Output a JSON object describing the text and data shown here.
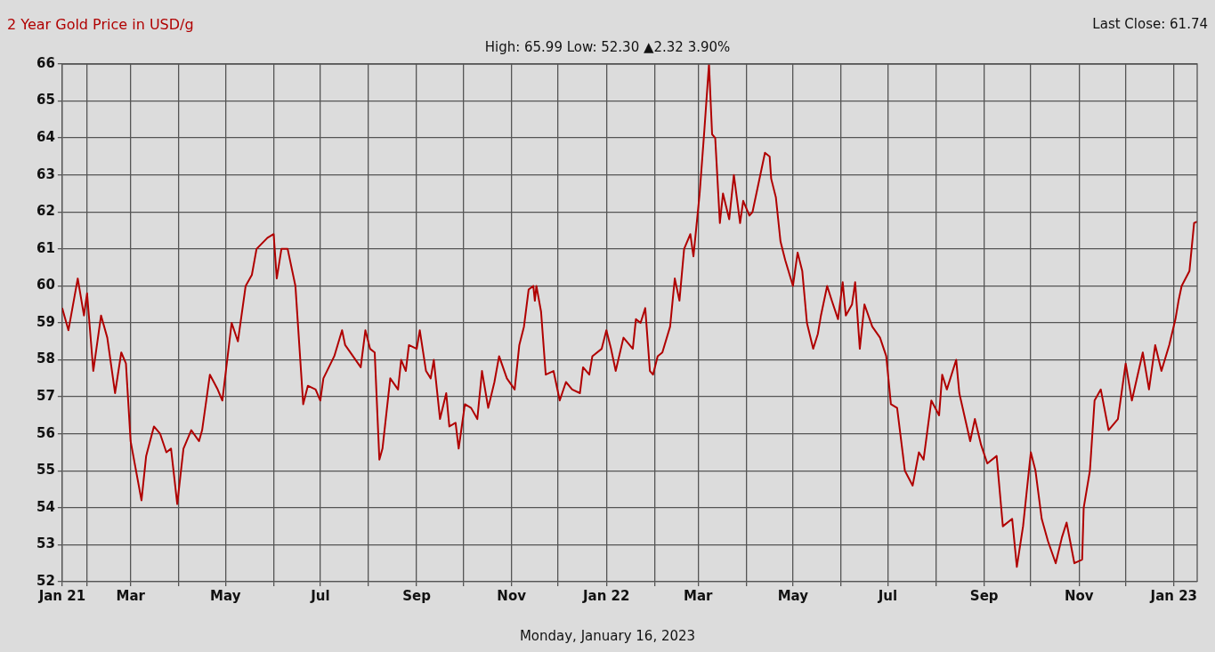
{
  "chart_data": {
    "type": "line",
    "title": "2 Year Gold Price in USD/g",
    "annotations": [
      "High: 65.99 Low: 52.30 ▲2.32 3.90%",
      "Last Close: 61.74",
      "Monday, January 16, 2023"
    ],
    "x": [
      "2021-01-16",
      "2021-01-20",
      "2021-01-26",
      "2021-01-28",
      "2021-01-30",
      "2021-02-01",
      "2021-02-05",
      "2021-02-10",
      "2021-02-14",
      "2021-02-19",
      "2021-02-23",
      "2021-02-26",
      "2021-03-01",
      "2021-03-08",
      "2021-03-11",
      "2021-03-16",
      "2021-03-20",
      "2021-03-24",
      "2021-03-27",
      "2021-03-31",
      "2021-04-04",
      "2021-04-09",
      "2021-04-14",
      "2021-04-16",
      "2021-04-21",
      "2021-04-26",
      "2021-04-29",
      "2021-05-01",
      "2021-05-05",
      "2021-05-09",
      "2021-05-14",
      "2021-05-18",
      "2021-05-21",
      "2021-05-28",
      "2021-06-01",
      "2021-06-03",
      "2021-06-06",
      "2021-06-10",
      "2021-06-15",
      "2021-06-20",
      "2021-06-23",
      "2021-06-28",
      "2021-07-01",
      "2021-07-03",
      "2021-07-10",
      "2021-07-15",
      "2021-07-17",
      "2021-07-27",
      "2021-07-30",
      "2021-08-02",
      "2021-08-05",
      "2021-08-08",
      "2021-08-10",
      "2021-08-15",
      "2021-08-20",
      "2021-08-22",
      "2021-08-25",
      "2021-08-27",
      "2021-09-01",
      "2021-09-03",
      "2021-09-07",
      "2021-09-10",
      "2021-09-12",
      "2021-09-16",
      "2021-09-20",
      "2021-09-22",
      "2021-09-26",
      "2021-09-28",
      "2021-10-02",
      "2021-10-06",
      "2021-10-10",
      "2021-10-13",
      "2021-10-17",
      "2021-10-21",
      "2021-10-24",
      "2021-10-29",
      "2021-11-03",
      "2021-11-06",
      "2021-11-09",
      "2021-11-12",
      "2021-11-15",
      "2021-11-16",
      "2021-11-17",
      "2021-11-20",
      "2021-11-23",
      "2021-11-28",
      "2021-12-02",
      "2021-12-06",
      "2021-12-10",
      "2021-12-15",
      "2021-12-17",
      "2021-12-21",
      "2021-12-23",
      "2021-12-29",
      "2022-01-01",
      "2022-01-04",
      "2022-01-07",
      "2022-01-12",
      "2022-01-18",
      "2022-01-20",
      "2022-01-23",
      "2022-01-26",
      "2022-01-29",
      "2022-01-31",
      "2022-02-03",
      "2022-02-06",
      "2022-02-11",
      "2022-02-14",
      "2022-02-17",
      "2022-02-20",
      "2022-02-24",
      "2022-02-26",
      "2022-03-02",
      "2022-03-05",
      "2022-03-08",
      "2022-03-10",
      "2022-03-12",
      "2022-03-15",
      "2022-03-17",
      "2022-03-21",
      "2022-03-24",
      "2022-03-28",
      "2022-03-30",
      "2022-04-03",
      "2022-04-05",
      "2022-04-09",
      "2022-04-13",
      "2022-04-16",
      "2022-04-17",
      "2022-04-20",
      "2022-04-23",
      "2022-04-26",
      "2022-05-01",
      "2022-05-04",
      "2022-05-07",
      "2022-05-10",
      "2022-05-14",
      "2022-05-17",
      "2022-05-19",
      "2022-05-23",
      "2022-05-26",
      "2022-05-30",
      "2022-06-02",
      "2022-06-04",
      "2022-06-08",
      "2022-06-10",
      "2022-06-13",
      "2022-06-16",
      "2022-06-21",
      "2022-06-26",
      "2022-06-30",
      "2022-07-03",
      "2022-07-07",
      "2022-07-12",
      "2022-07-17",
      "2022-07-21",
      "2022-07-24",
      "2022-07-29",
      "2022-08-03",
      "2022-08-05",
      "2022-08-08",
      "2022-08-14",
      "2022-08-16",
      "2022-08-23",
      "2022-08-26",
      "2022-08-30",
      "2022-09-03",
      "2022-09-09",
      "2022-09-13",
      "2022-09-19",
      "2022-09-22",
      "2022-09-26",
      "2022-10-01",
      "2022-10-04",
      "2022-10-08",
      "2022-10-12",
      "2022-10-17",
      "2022-10-21",
      "2022-10-24",
      "2022-10-29",
      "2022-11-03",
      "2022-11-04",
      "2022-11-08",
      "2022-11-11",
      "2022-11-15",
      "2022-11-20",
      "2022-11-26",
      "2022-12-01",
      "2022-12-05",
      "2022-12-12",
      "2022-12-16",
      "2022-12-20",
      "2022-12-24",
      "2022-12-29",
      "2023-01-02",
      "2023-01-04",
      "2023-01-06",
      "2023-01-11",
      "2023-01-14",
      "2023-01-16"
    ],
    "series": [
      {
        "color": "#b00000",
        "values": [
          59.4,
          58.8,
          60.2,
          59.7,
          59.2,
          59.8,
          57.7,
          59.2,
          58.6,
          57.1,
          58.2,
          57.9,
          55.8,
          54.2,
          55.4,
          56.2,
          56.0,
          55.5,
          55.6,
          54.1,
          55.6,
          56.1,
          55.8,
          56.1,
          57.6,
          57.2,
          56.9,
          57.6,
          59.0,
          58.5,
          60.0,
          60.3,
          61.0,
          61.3,
          61.4,
          60.2,
          61.0,
          61.0,
          60.0,
          56.8,
          57.3,
          57.2,
          56.9,
          57.5,
          58.1,
          58.8,
          58.4,
          57.8,
          58.8,
          58.3,
          58.2,
          55.3,
          55.6,
          57.5,
          57.2,
          58.0,
          57.7,
          58.4,
          58.3,
          58.8,
          57.7,
          57.5,
          58.0,
          56.4,
          57.1,
          56.2,
          56.3,
          55.6,
          56.8,
          56.7,
          56.4,
          57.7,
          56.7,
          57.4,
          58.1,
          57.5,
          57.2,
          58.4,
          58.9,
          59.9,
          60.0,
          59.6,
          60.0,
          59.3,
          57.6,
          57.7,
          56.9,
          57.4,
          57.2,
          57.1,
          57.8,
          57.6,
          58.1,
          58.3,
          58.8,
          58.3,
          57.7,
          58.6,
          58.3,
          59.1,
          59.0,
          59.4,
          57.7,
          57.6,
          58.1,
          58.2,
          58.9,
          60.2,
          59.6,
          61.0,
          61.4,
          60.8,
          62.5,
          64.2,
          66.0,
          64.1,
          64.0,
          61.7,
          62.5,
          61.8,
          63.0,
          61.7,
          62.3,
          61.9,
          62.0,
          62.8,
          63.6,
          63.5,
          62.9,
          62.4,
          61.2,
          60.7,
          60.0,
          60.9,
          60.4,
          59.0,
          58.3,
          58.7,
          59.2,
          60.0,
          59.6,
          59.1,
          60.1,
          59.2,
          59.5,
          60.1,
          58.3,
          59.5,
          58.9,
          58.6,
          58.1,
          56.8,
          56.7,
          55.0,
          54.6,
          55.5,
          55.3,
          56.9,
          56.5,
          57.6,
          57.2,
          58.0,
          57.1,
          55.8,
          56.4,
          55.7,
          55.2,
          55.4,
          53.5,
          53.7,
          52.4,
          53.5,
          55.5,
          55.0,
          53.7,
          53.1,
          52.5,
          53.2,
          53.6,
          52.5,
          52.6,
          54.0,
          55.0,
          56.9,
          57.2,
          56.1,
          56.4,
          57.9,
          56.9,
          58.2,
          57.2,
          58.4,
          57.7,
          58.4,
          59.1,
          59.6,
          60.0,
          60.4,
          61.7,
          61.74
        ]
      }
    ],
    "xlim": [
      "2021-01-16",
      "2023-01-16"
    ],
    "xticks": [
      {
        "value": "2021-01-16",
        "label": "Jan 21"
      },
      {
        "value": "2021-02-01",
        "label": null
      },
      {
        "value": "2021-03-01",
        "label": "Mar"
      },
      {
        "value": "2021-04-01",
        "label": null
      },
      {
        "value": "2021-05-01",
        "label": "May"
      },
      {
        "value": "2021-06-01",
        "label": null
      },
      {
        "value": "2021-07-01",
        "label": "Jul"
      },
      {
        "value": "2021-08-01",
        "label": null
      },
      {
        "value": "2021-09-01",
        "label": "Sep"
      },
      {
        "value": "2021-10-01",
        "label": null
      },
      {
        "value": "2021-11-01",
        "label": "Nov"
      },
      {
        "value": "2021-12-01",
        "label": null
      },
      {
        "value": "2022-01-01",
        "label": "Jan 22"
      },
      {
        "value": "2022-02-01",
        "label": null
      },
      {
        "value": "2022-03-01",
        "label": "Mar"
      },
      {
        "value": "2022-04-01",
        "label": null
      },
      {
        "value": "2022-05-01",
        "label": "May"
      },
      {
        "value": "2022-06-01",
        "label": null
      },
      {
        "value": "2022-07-01",
        "label": "Jul"
      },
      {
        "value": "2022-08-01",
        "label": null
      },
      {
        "value": "2022-09-01",
        "label": "Sep"
      },
      {
        "value": "2022-10-01",
        "label": null
      },
      {
        "value": "2022-11-01",
        "label": "Nov"
      },
      {
        "value": "2022-12-01",
        "label": null
      },
      {
        "value": "2023-01-01",
        "label": "Jan 23"
      }
    ],
    "ylim": [
      52,
      66
    ],
    "yticks": [
      52,
      53,
      54,
      55,
      56,
      57,
      58,
      59,
      60,
      61,
      62,
      63,
      64,
      65,
      66
    ],
    "grid": true,
    "marker": "none",
    "line_style": "solid"
  }
}
